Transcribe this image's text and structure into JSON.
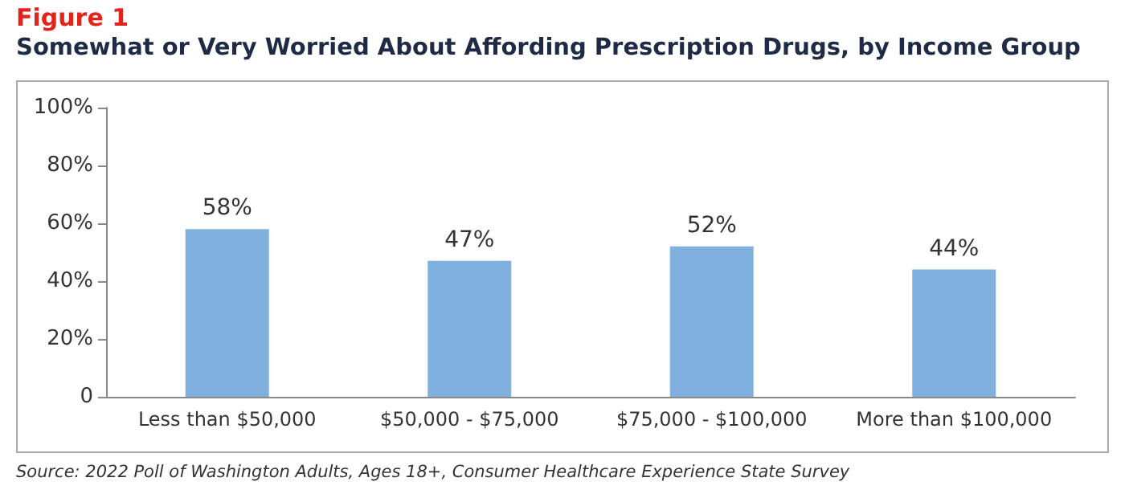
{
  "chart_data": {
    "type": "bar",
    "title": "Figure 1",
    "subtitle": "Somewhat or Very Worried About Affording Prescription Drugs, by Income Group",
    "categories": [
      "Less than $50,000",
      "$50,000 - $75,000",
      "$75,000 - $100,000",
      "More than $100,000"
    ],
    "values": [
      58,
      47,
      52,
      44
    ],
    "color": "#7fb0de",
    "value_labels": [
      "58%",
      "47%",
      "52%",
      "44%"
    ],
    "ylim": [
      0,
      100
    ],
    "yticks": [
      0,
      {
        "value": 20,
        "label": "20%"
      },
      {
        "value": 40,
        "label": "40%"
      },
      {
        "value": 60,
        "label": "60%"
      },
      {
        "value": 80,
        "label": "80%"
      },
      {
        "value": 100,
        "label": "100%"
      }
    ],
    "grid": false,
    "annotations": [
      "Source: 2022 Poll of Washington Adults, Ages 18+, Consumer Healthcare Experience State Survey"
    ]
  }
}
